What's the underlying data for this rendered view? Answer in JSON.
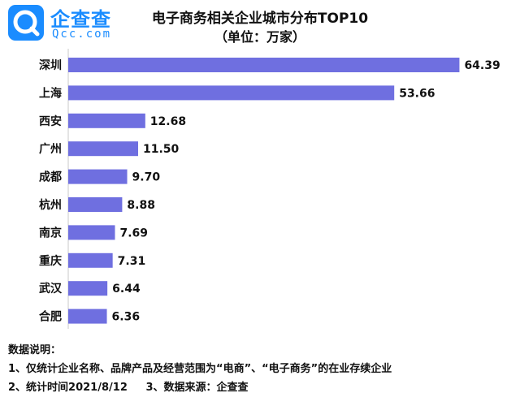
{
  "brand": {
    "name_cn": "企查查",
    "name_en": "Qcc.com",
    "color": "#1a8cff"
  },
  "header": {
    "title": "电子商务相关企业城市分布TOP10",
    "subtitle": "（单位：万家）"
  },
  "chart_data": {
    "type": "bar",
    "orientation": "horizontal",
    "title": "电子商务相关企业城市分布TOP10",
    "subtitle": "（单位：万家）",
    "categories": [
      "深圳",
      "上海",
      "西安",
      "广州",
      "成都",
      "杭州",
      "南京",
      "重庆",
      "武汉",
      "合肥"
    ],
    "values": [
      64.39,
      53.66,
      12.68,
      11.5,
      9.7,
      8.88,
      7.69,
      7.31,
      6.44,
      6.36
    ],
    "value_labels": [
      "64.39",
      "53.66",
      "12.68",
      "11.50",
      "9.70",
      "8.88",
      "7.69",
      "7.31",
      "6.44",
      "6.36"
    ],
    "xlim": [
      0,
      65
    ],
    "grid": false,
    "bar_color": "#6f6fe0"
  },
  "notes": {
    "heading": "数据说明：",
    "line1": "1、仅统计企业名称、品牌产品及经营范围为“电商”、“电子商务”的在业存续企业",
    "line2": "2、统计时间2021/8/12     3、数据来源：企查查"
  }
}
